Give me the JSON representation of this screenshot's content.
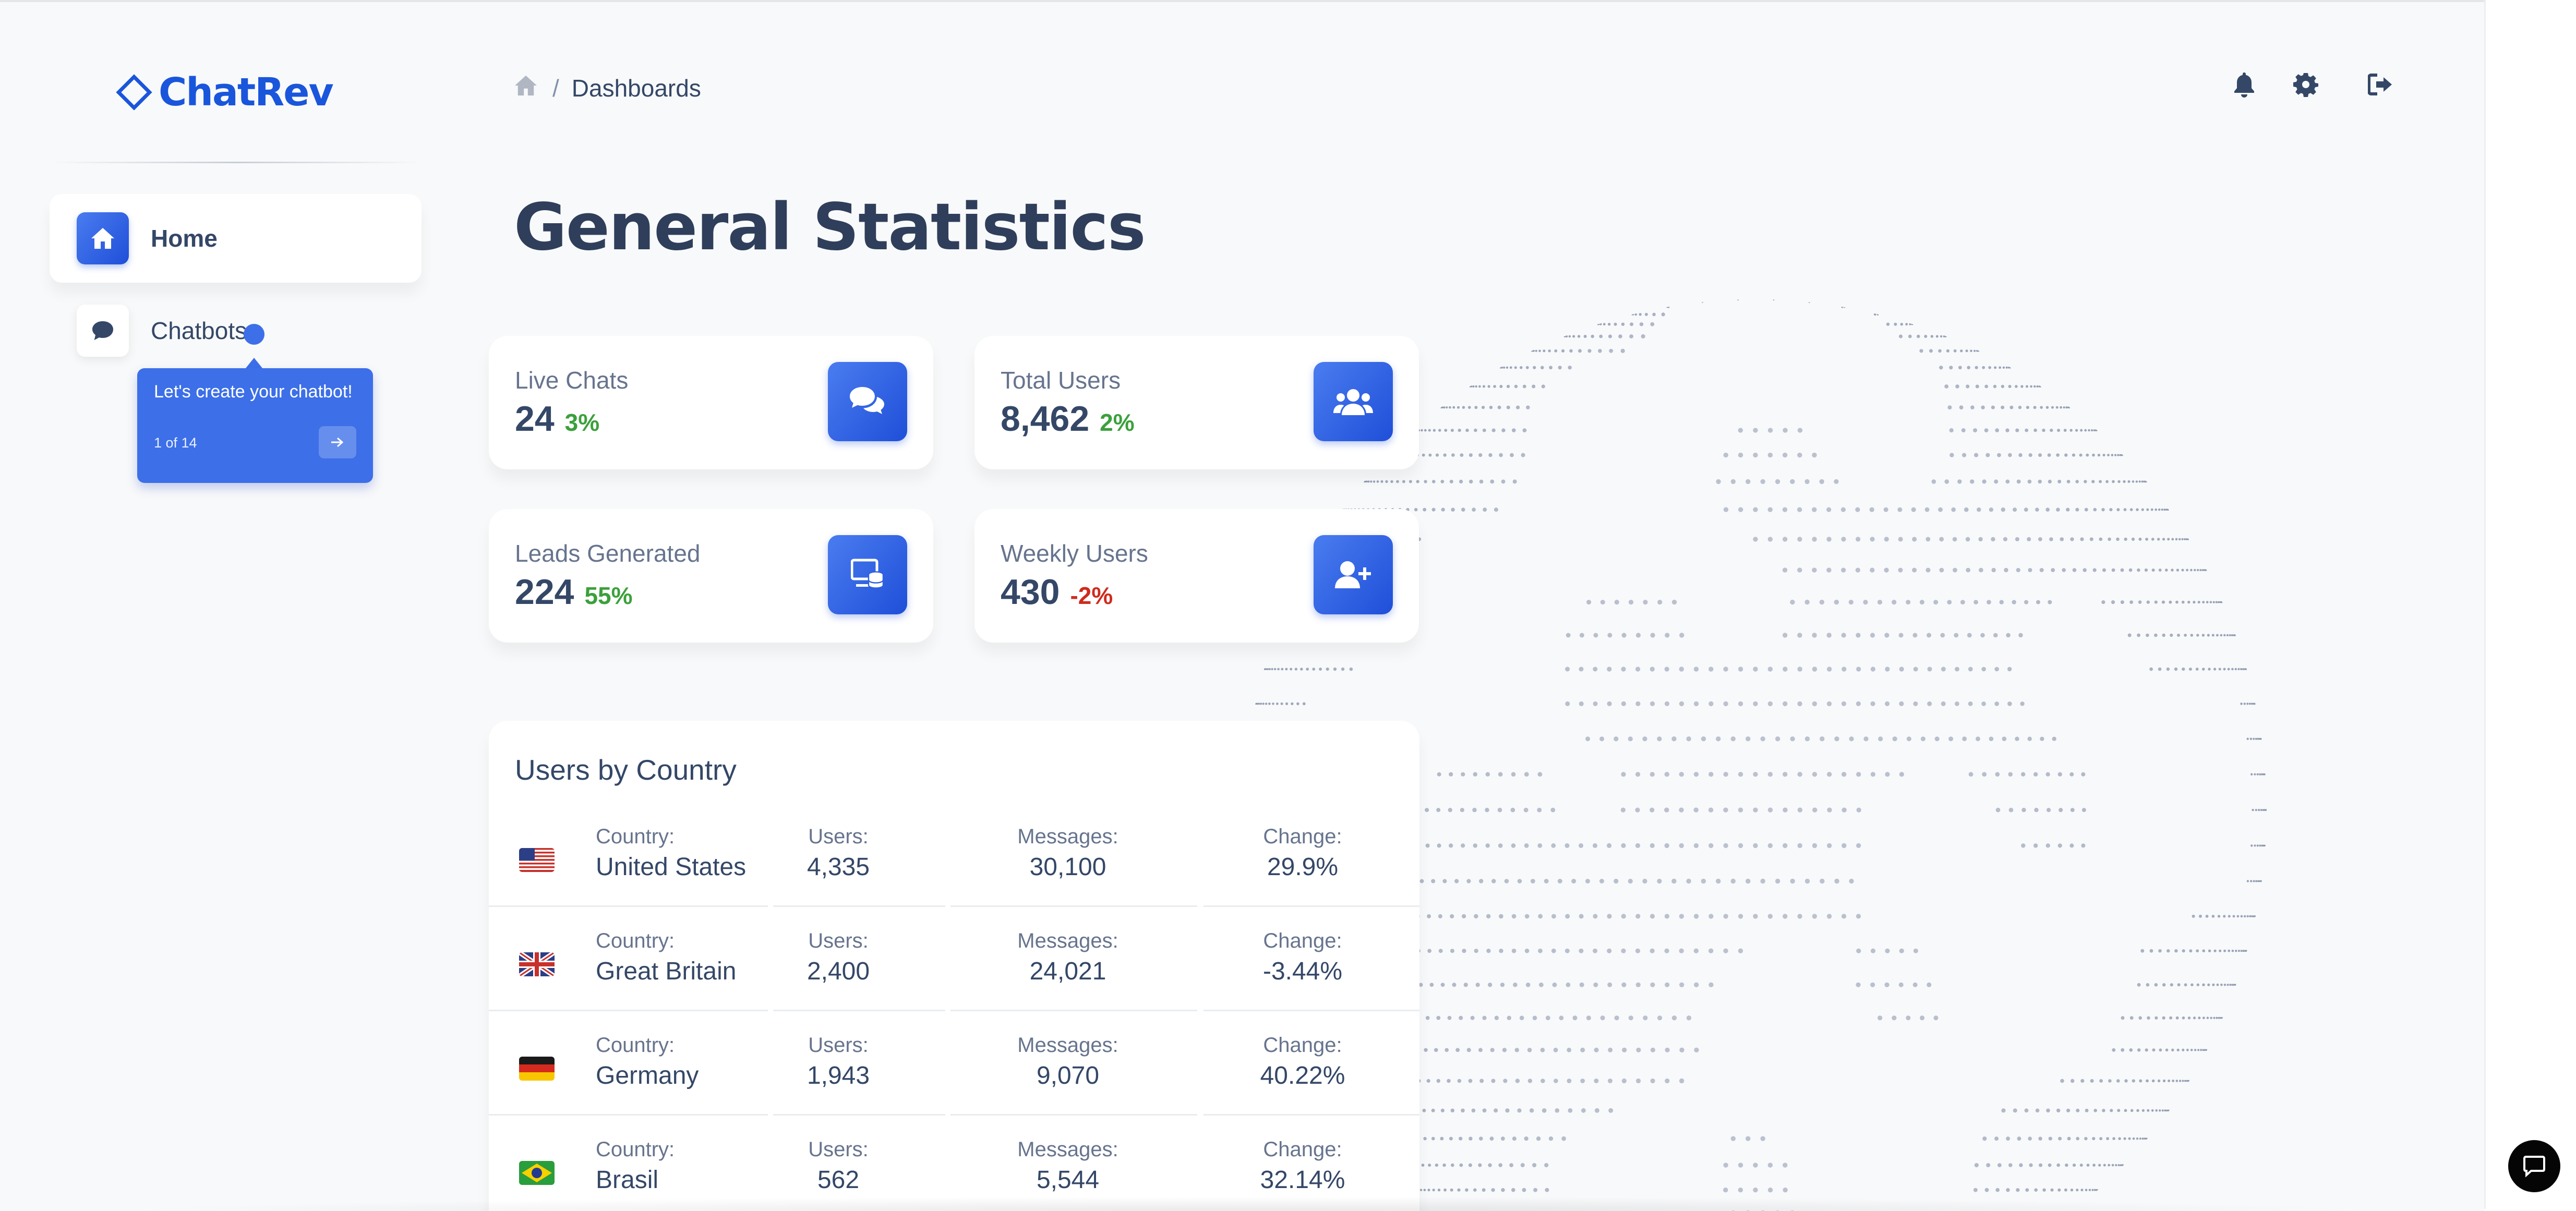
{
  "brand": {
    "name": "ChatRev",
    "color": "#1a56db"
  },
  "sidebar": {
    "items": [
      {
        "label": "Home",
        "icon": "home-icon",
        "active": true
      },
      {
        "label": "Chatbots",
        "icon": "chat-bubble-icon",
        "active": false
      }
    ]
  },
  "tour": {
    "text": "Let's create your chatbot!",
    "step": "1 of 14",
    "next_icon": "arrow-right-icon"
  },
  "breadcrumb": {
    "home_icon": "home-icon",
    "separator": "/",
    "current": "Dashboards"
  },
  "header_icons": [
    "bell-icon",
    "gear-icon",
    "sign-out-icon"
  ],
  "page": {
    "title": "General Statistics"
  },
  "stats": [
    {
      "label": "Live Chats",
      "value": "24",
      "change": "3%",
      "trend": "up",
      "icon": "comments-icon"
    },
    {
      "label": "Total Users",
      "value": "8,462",
      "change": "2%",
      "trend": "up",
      "icon": "users-icon"
    },
    {
      "label": "Leads Generated",
      "value": "224",
      "change": "55%",
      "trend": "up",
      "icon": "leads-database-icon"
    },
    {
      "label": "Weekly Users",
      "value": "430",
      "change": "-2%",
      "trend": "down",
      "icon": "user-plus-icon"
    }
  ],
  "countries": {
    "title": "Users by Country",
    "labels": {
      "country": "Country:",
      "users": "Users:",
      "messages": "Messages:",
      "change": "Change:"
    },
    "rows": [
      {
        "flag": "us-flag-icon",
        "country": "United States",
        "users": "4,335",
        "messages": "30,100",
        "change": "29.9%",
        "trend": "up"
      },
      {
        "flag": "gb-flag-icon",
        "country": "Great Britain",
        "users": "2,400",
        "messages": "24,021",
        "change": "-3.44%",
        "trend": "down"
      },
      {
        "flag": "de-flag-icon",
        "country": "Germany",
        "users": "1,943",
        "messages": "9,070",
        "change": "40.22%",
        "trend": "up"
      },
      {
        "flag": "br-flag-icon",
        "country": "Brasil",
        "users": "562",
        "messages": "5,544",
        "change": "32.14%",
        "trend": "up"
      }
    ]
  },
  "colors": {
    "accent": "#1f4fd8",
    "positive": "#3ba03b",
    "negative": "#cf2a1d",
    "text": "#344767",
    "globe": "#8a94ab"
  },
  "chat_widget": {
    "icon": "chat-widget-icon"
  }
}
